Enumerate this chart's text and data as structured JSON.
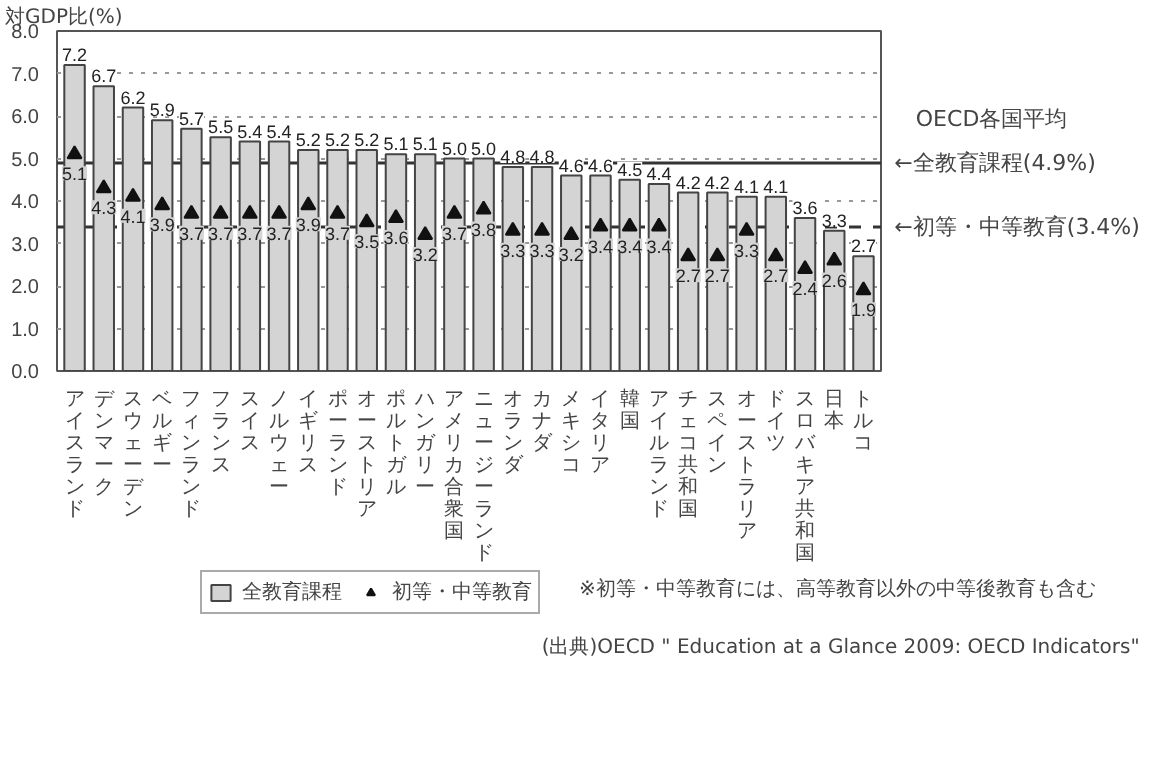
{
  "chart_data": {
    "type": "bar",
    "ylabel": "対GDP比(%)",
    "categories": [
      "アイスランド",
      "デンマーク",
      "スウェーデン",
      "ベルギー",
      "フィンランド",
      "フランス",
      "スイス",
      "ノルウェー",
      "イギリス",
      "ポーランド",
      "オーストリア",
      "ポルトガル",
      "ハンガリー",
      "アメリカ合衆国",
      "ニュージーランド",
      "オランダ",
      "カナダ",
      "メキシコ",
      "イタリア",
      "韓国",
      "アイルランド",
      "チェコ共和国",
      "スペイン",
      "オーストラリア",
      "ドイツ",
      "スロバキア共和国",
      "日本",
      "トルコ"
    ],
    "series": [
      {
        "name": "全教育課程",
        "color": "#d4d4d4",
        "values": [
          7.2,
          6.7,
          6.2,
          5.9,
          5.7,
          5.5,
          5.4,
          5.4,
          5.2,
          5.2,
          5.2,
          5.1,
          5.1,
          5.0,
          5.0,
          4.8,
          4.8,
          4.6,
          4.6,
          4.5,
          4.4,
          4.2,
          4.2,
          4.1,
          4.1,
          3.6,
          3.3,
          2.7
        ],
        "value_labels": [
          "7.2",
          "6.7",
          "6.2",
          "5.9",
          "5.7",
          "5.5",
          "5.4",
          "5.4",
          "5.2",
          "5.2",
          "5.2",
          "5.1",
          "5.1",
          "5.0",
          "5.0",
          "4.8",
          "4.8",
          "4.6",
          "4.6",
          "4.5",
          "4.4",
          "4.2",
          "4.2",
          "4.1",
          "4.1",
          "3.6",
          "3.3",
          "2.7"
        ]
      },
      {
        "name": "初等・中等教育",
        "type": "scatter",
        "marker": "triangle",
        "color": "#111111",
        "values": [
          5.1,
          4.3,
          4.1,
          3.9,
          3.7,
          3.7,
          3.7,
          3.7,
          3.9,
          3.7,
          3.5,
          3.6,
          3.2,
          3.7,
          3.8,
          3.3,
          3.3,
          3.2,
          3.4,
          3.4,
          3.4,
          2.7,
          2.7,
          3.3,
          2.7,
          2.4,
          2.6,
          1.9
        ],
        "value_labels": [
          "5.1",
          "4.3",
          "4.1",
          "3.9",
          "3.7",
          "3.7",
          "3.7",
          "3.7",
          "3.9",
          "3.7",
          "3.5",
          "3.6",
          "3.2",
          "3.7",
          "3.8",
          "3.3",
          "3.3",
          "3.2",
          "3.4",
          "3.4",
          "3.4",
          "2.7",
          "2.7",
          "3.3",
          "2.7",
          "2.4",
          "2.6",
          "1.9"
        ]
      }
    ],
    "ylim": [
      0,
      8
    ],
    "yticks": [
      {
        "value": 0,
        "label": "0.0"
      },
      {
        "value": 1,
        "label": "1.0"
      },
      {
        "value": 2,
        "label": "2.0"
      },
      {
        "value": 3,
        "label": "3.0"
      },
      {
        "value": 4,
        "label": "4.0"
      },
      {
        "value": 5,
        "label": "5.0"
      },
      {
        "value": 6,
        "label": "6.0"
      },
      {
        "value": 7,
        "label": "7.0"
      },
      {
        "value": 8,
        "label": "8.0"
      }
    ],
    "grid": "y",
    "legend": "bottom",
    "ref_lines": [
      {
        "axis": "y",
        "value": 4.9,
        "label": "←全教育課程(4.9%)",
        "line_style": "solid",
        "color": "#333333"
      },
      {
        "axis": "y",
        "value": 3.4,
        "label": "←初等・中等教育(3.4%)",
        "line_style": "dashed",
        "color": "#333333"
      }
    ],
    "annotations": [
      "OECD各国平均",
      "※初等・中等教育には、高等教育以外の中等後教育も含む",
      "(出典)OECD \" Education at a Glance 2009: OECD Indicators\""
    ]
  }
}
